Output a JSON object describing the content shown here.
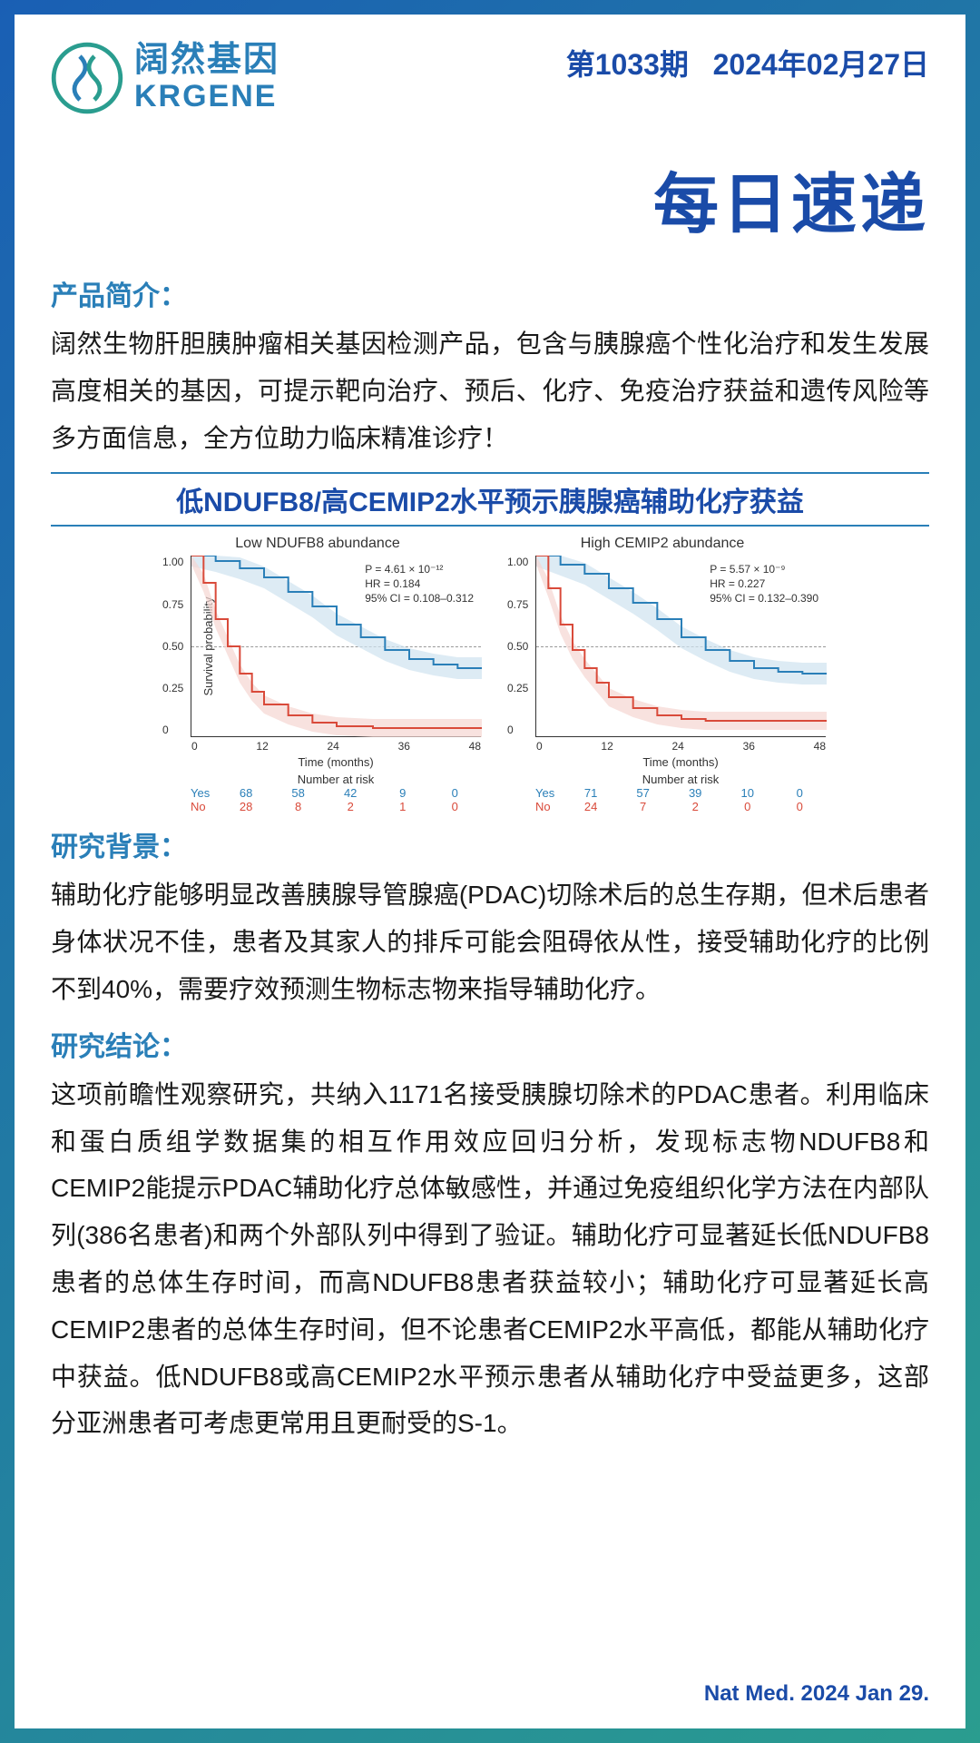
{
  "header": {
    "logo_cn": "阔然基因",
    "logo_en": "KRGENE",
    "issue": "第1033期",
    "date": "2024年02月27日"
  },
  "main_title": "每日速递",
  "intro": {
    "label": "产品简介：",
    "text": "阔然生物肝胆胰肿瘤相关基因检测产品，包含与胰腺癌个性化治疗和发生发展高度相关的基因，可提示靶向治疗、预后、化疗、免疫治疗获益和遗传风险等多方面信息，全方位助力临床精准诊疗！"
  },
  "chart_section_title": "低NDUFB8/高CEMIP2水平预示胰腺癌辅助化疗获益",
  "charts": {
    "ylabel": "Survival probability",
    "xlabel": "Time (months)",
    "yticks": [
      "1.00",
      "0.75",
      "0.50",
      "0.25",
      "0"
    ],
    "xticks": [
      "0",
      "12",
      "24",
      "36",
      "48"
    ],
    "risk_title": "Number at risk",
    "colors": {
      "yes": "#2a7fb8",
      "no": "#d94a3a",
      "ci_yes": "#cfe3f0",
      "ci_no": "#f5d6d2"
    },
    "left": {
      "title": "Low NDUFB8 abundance",
      "p": "P = 4.61 × 10⁻¹²",
      "hr": "HR = 0.184",
      "ci": "95% CI = 0.108–0.312",
      "yes_curve": [
        [
          0,
          1.0
        ],
        [
          4,
          0.97
        ],
        [
          8,
          0.93
        ],
        [
          12,
          0.88
        ],
        [
          16,
          0.8
        ],
        [
          20,
          0.72
        ],
        [
          24,
          0.62
        ],
        [
          28,
          0.55
        ],
        [
          32,
          0.48
        ],
        [
          36,
          0.43
        ],
        [
          40,
          0.4
        ],
        [
          44,
          0.38
        ],
        [
          48,
          0.38
        ]
      ],
      "no_curve": [
        [
          0,
          1.0
        ],
        [
          2,
          0.85
        ],
        [
          4,
          0.65
        ],
        [
          6,
          0.5
        ],
        [
          8,
          0.35
        ],
        [
          10,
          0.25
        ],
        [
          12,
          0.18
        ],
        [
          16,
          0.12
        ],
        [
          20,
          0.08
        ],
        [
          24,
          0.06
        ],
        [
          30,
          0.05
        ],
        [
          40,
          0.05
        ],
        [
          48,
          0.05
        ]
      ],
      "risk_yes": [
        "68",
        "58",
        "42",
        "9",
        "0"
      ],
      "risk_no": [
        "28",
        "8",
        "2",
        "1",
        "0"
      ]
    },
    "right": {
      "title": "High CEMIP2 abundance",
      "p": "P = 5.57 × 10⁻⁹",
      "hr": "HR = 0.227",
      "ci": "95% CI = 0.132–0.390",
      "yes_curve": [
        [
          0,
          1.0
        ],
        [
          4,
          0.95
        ],
        [
          8,
          0.9
        ],
        [
          12,
          0.82
        ],
        [
          16,
          0.74
        ],
        [
          20,
          0.65
        ],
        [
          24,
          0.55
        ],
        [
          28,
          0.48
        ],
        [
          32,
          0.42
        ],
        [
          36,
          0.38
        ],
        [
          40,
          0.36
        ],
        [
          44,
          0.35
        ],
        [
          48,
          0.35
        ]
      ],
      "no_curve": [
        [
          0,
          1.0
        ],
        [
          2,
          0.82
        ],
        [
          4,
          0.62
        ],
        [
          6,
          0.48
        ],
        [
          8,
          0.38
        ],
        [
          10,
          0.3
        ],
        [
          12,
          0.22
        ],
        [
          16,
          0.16
        ],
        [
          20,
          0.12
        ],
        [
          24,
          0.1
        ],
        [
          28,
          0.09
        ],
        [
          32,
          0.09
        ],
        [
          48,
          0.09
        ]
      ],
      "risk_yes": [
        "71",
        "57",
        "39",
        "10",
        "0"
      ],
      "risk_no": [
        "24",
        "7",
        "2",
        "0",
        "0"
      ]
    }
  },
  "background": {
    "label": "研究背景：",
    "text": "辅助化疗能够明显改善胰腺导管腺癌(PDAC)切除术后的总生存期，但术后患者身体状况不佳，患者及其家人的排斥可能会阻碍依从性，接受辅助化疗的比例不到40%，需要疗效预测生物标志物来指导辅助化疗。"
  },
  "conclusion": {
    "label": "研究结论：",
    "text": "这项前瞻性观察研究，共纳入1171名接受胰腺切除术的PDAC患者。利用临床和蛋白质组学数据集的相互作用效应回归分析，发现标志物NDUFB8和CEMIP2能提示PDAC辅助化疗总体敏感性，并通过免疫组织化学方法在内部队列(386名患者)和两个外部队列中得到了验证。辅助化疗可显著延长低NDUFB8患者的总体生存时间，而高NDUFB8患者获益较小；辅助化疗可显著延长高CEMIP2患者的总体生存时间，但不论患者CEMIP2水平高低，都能从辅助化疗中获益。低NDUFB8或高CEMIP2水平预示患者从辅助化疗中受益更多，这部分亚洲患者可考虑更常用且更耐受的S-1。"
  },
  "citation": "Nat Med. 2024 Jan 29."
}
